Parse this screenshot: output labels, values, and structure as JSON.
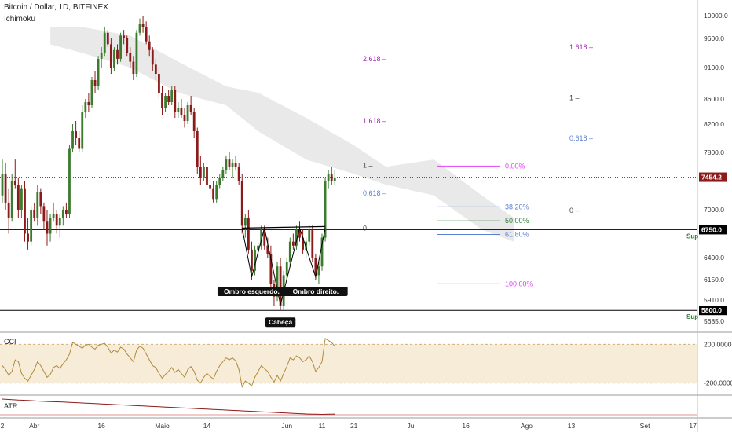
{
  "header": {
    "symbol_line": "Bitcoin / Dollar, 1D, BITFINEX",
    "indicator_line": "Ichimoku"
  },
  "colors": {
    "up": "#3c7a2e",
    "down": "#8b1a1a",
    "cloud": "#e2e2e2",
    "red_dotted": "#c62828",
    "cci_line": "#b08a3a",
    "cci_band": "#f6ecd8",
    "atr_line": "#8b1a1a",
    "fib_purple": "#9c27b0",
    "fib_blue": "#5b7fd1",
    "fib_green": "#2e7d32",
    "fib_magenta": "#e040fb",
    "support_green": "#2e7d32",
    "neckline": "#000000"
  },
  "chart_data": {
    "type": "candlestick",
    "title": "Bitcoin / Dollar, 1D, BITFINEX",
    "ylim": [
      5550,
      10100
    ],
    "y_ticks": [
      "10000.0",
      "9600.0",
      "9100.0",
      "8600.0",
      "8200.0",
      "7800.0",
      "7000.0",
      "6400.0",
      "6150.0",
      "5910.0",
      "5685.0"
    ],
    "y_tick_values": [
      10000,
      9600,
      9100,
      8600,
      8200,
      7800,
      7000,
      6400,
      6150,
      5910,
      5685
    ],
    "x_ticks": [
      "2",
      "Abr",
      "16",
      "Maio",
      "14",
      "Jun",
      "11",
      "21",
      "Jul",
      "16",
      "Ago",
      "13",
      "Set",
      "17"
    ],
    "x_tick_days": [
      0,
      10,
      31,
      50,
      64,
      89,
      100,
      110,
      128,
      145,
      164,
      178,
      201,
      216
    ],
    "current_price": {
      "value": 7454.2,
      "label": "7454.2"
    },
    "support_levels": [
      {
        "value": 6750,
        "label": "6750.0",
        "tag": "Sup"
      },
      {
        "value": 5800,
        "label": "5800.0",
        "tag": "Sup"
      }
    ],
    "candles": [
      [
        0,
        7200,
        7700,
        7100,
        7500
      ],
      [
        1,
        7500,
        7650,
        7000,
        7100
      ],
      [
        2,
        7100,
        7300,
        6700,
        6900
      ],
      [
        3,
        6900,
        7500,
        6850,
        7400
      ],
      [
        4,
        7400,
        7700,
        7300,
        7350
      ],
      [
        5,
        7350,
        7450,
        6900,
        7000
      ],
      [
        6,
        7000,
        7350,
        6900,
        7300
      ],
      [
        7,
        7300,
        7400,
        6600,
        6700
      ],
      [
        8,
        6700,
        6900,
        6500,
        6600
      ],
      [
        9,
        6600,
        7050,
        6550,
        7000
      ],
      [
        10,
        7000,
        7100,
        6850,
        6900
      ],
      [
        11,
        6900,
        7350,
        6800,
        7250
      ],
      [
        12,
        7250,
        7300,
        6950,
        7050
      ],
      [
        13,
        7050,
        7100,
        6750,
        6850
      ],
      [
        14,
        6850,
        7000,
        6550,
        6700
      ],
      [
        15,
        6700,
        6950,
        6600,
        6900
      ],
      [
        16,
        6900,
        7100,
        6850,
        6950
      ],
      [
        17,
        6950,
        7000,
        6700,
        6800
      ],
      [
        18,
        6800,
        6950,
        6650,
        6900
      ],
      [
        19,
        6900,
        7050,
        6800,
        7000
      ],
      [
        20,
        7000,
        7100,
        6900,
        6950
      ],
      [
        21,
        6950,
        7900,
        6900,
        7850
      ],
      [
        22,
        7850,
        8200,
        7800,
        8100
      ],
      [
        23,
        8100,
        8250,
        7900,
        8000
      ],
      [
        24,
        8000,
        8100,
        7800,
        7850
      ],
      [
        25,
        7850,
        8500,
        7800,
        8400
      ],
      [
        26,
        8400,
        8600,
        8300,
        8550
      ],
      [
        27,
        8550,
        8700,
        8400,
        8500
      ],
      [
        28,
        8500,
        8950,
        8450,
        8900
      ],
      [
        29,
        8900,
        9050,
        8700,
        8800
      ],
      [
        30,
        8800,
        9300,
        8750,
        9250
      ],
      [
        31,
        9250,
        9450,
        9100,
        9350
      ],
      [
        32,
        9350,
        9800,
        9300,
        9700
      ],
      [
        33,
        9700,
        9750,
        9450,
        9500
      ],
      [
        34,
        9500,
        9600,
        9000,
        9100
      ],
      [
        35,
        9100,
        9450,
        9050,
        9400
      ],
      [
        36,
        9400,
        9500,
        9150,
        9250
      ],
      [
        37,
        9250,
        9700,
        9200,
        9650
      ],
      [
        38,
        9650,
        9750,
        9500,
        9600
      ],
      [
        39,
        9600,
        9650,
        9300,
        9350
      ],
      [
        40,
        9350,
        9450,
        9100,
        9200
      ],
      [
        41,
        9200,
        9300,
        8900,
        9000
      ],
      [
        42,
        9000,
        9750,
        8950,
        9700
      ],
      [
        43,
        9700,
        9950,
        9650,
        9850
      ],
      [
        44,
        9850,
        10000,
        9700,
        9800
      ],
      [
        45,
        9800,
        9900,
        9500,
        9550
      ],
      [
        46,
        9550,
        9650,
        9300,
        9400
      ],
      [
        47,
        9400,
        9450,
        9050,
        9150
      ],
      [
        48,
        9150,
        9250,
        8900,
        9000
      ],
      [
        49,
        9000,
        9100,
        8600,
        8700
      ],
      [
        50,
        8700,
        8800,
        8350,
        8450
      ],
      [
        51,
        8450,
        8700,
        8400,
        8650
      ],
      [
        52,
        8650,
        8750,
        8500,
        8550
      ],
      [
        53,
        8550,
        8800,
        8500,
        8750
      ],
      [
        54,
        8750,
        8800,
        8300,
        8400
      ],
      [
        55,
        8400,
        8550,
        8300,
        8450
      ],
      [
        56,
        8450,
        8600,
        8300,
        8350
      ],
      [
        57,
        8350,
        8450,
        8150,
        8250
      ],
      [
        58,
        8250,
        8550,
        8200,
        8500
      ],
      [
        59,
        8500,
        8650,
        8350,
        8400
      ],
      [
        60,
        8400,
        8450,
        8000,
        8100
      ],
      [
        61,
        8100,
        8150,
        7500,
        7600
      ],
      [
        62,
        7600,
        7750,
        7350,
        7450
      ],
      [
        63,
        7450,
        7650,
        7400,
        7600
      ],
      [
        64,
        7600,
        7700,
        7300,
        7350
      ],
      [
        65,
        7350,
        7450,
        7200,
        7300
      ],
      [
        66,
        7300,
        7400,
        7100,
        7150
      ],
      [
        67,
        7150,
        7400,
        7100,
        7350
      ],
      [
        68,
        7350,
        7500,
        7300,
        7450
      ],
      [
        69,
        7450,
        7600,
        7400,
        7550
      ],
      [
        70,
        7550,
        7750,
        7500,
        7700
      ],
      [
        71,
        7700,
        7800,
        7550,
        7600
      ],
      [
        72,
        7600,
        7700,
        7450,
        7650
      ],
      [
        73,
        7650,
        7750,
        7550,
        7600
      ],
      [
        74,
        7600,
        7650,
        7350,
        7400
      ],
      [
        75,
        7400,
        7500,
        6700,
        6800
      ],
      [
        76,
        6800,
        6950,
        6650,
        6900
      ],
      [
        77,
        6900,
        7000,
        6450,
        6500
      ],
      [
        78,
        6500,
        6600,
        6150,
        6250
      ],
      [
        79,
        6250,
        6550,
        6200,
        6500
      ],
      [
        80,
        6500,
        6600,
        6400,
        6550
      ],
      [
        81,
        6550,
        6800,
        6500,
        6750
      ],
      [
        82,
        6750,
        6800,
        6500,
        6550
      ],
      [
        83,
        6550,
        6650,
        6400,
        6450
      ],
      [
        84,
        6450,
        6550,
        6050,
        6100
      ],
      [
        85,
        6100,
        6150,
        5850,
        5950
      ],
      [
        86,
        5950,
        6350,
        5900,
        6300
      ],
      [
        87,
        6300,
        6400,
        5800,
        5850
      ],
      [
        88,
        5850,
        6250,
        5800,
        6200
      ],
      [
        89,
        6200,
        6400,
        6150,
        6350
      ],
      [
        90,
        6350,
        6650,
        6300,
        6600
      ],
      [
        91,
        6600,
        6700,
        6500,
        6550
      ],
      [
        92,
        6550,
        6800,
        6500,
        6750
      ],
      [
        93,
        6750,
        6850,
        6600,
        6650
      ],
      [
        94,
        6650,
        6750,
        6450,
        6500
      ],
      [
        95,
        6500,
        6650,
        6400,
        6600
      ],
      [
        96,
        6600,
        6800,
        6550,
        6750
      ],
      [
        97,
        6750,
        6800,
        6350,
        6400
      ],
      [
        98,
        6400,
        6450,
        6150,
        6200
      ],
      [
        99,
        6200,
        6350,
        6100,
        6300
      ],
      [
        100,
        6300,
        6700,
        6250,
        6650
      ],
      [
        101,
        6650,
        7450,
        6600,
        7400
      ],
      [
        102,
        7400,
        7550,
        7300,
        7500
      ],
      [
        103,
        7500,
        7600,
        7350,
        7400
      ],
      [
        104,
        7400,
        7550,
        7350,
        7450
      ]
    ],
    "annotations": [
      {
        "text": "Ombro esquerdo.",
        "x": 78,
        "y": 6150
      },
      {
        "text": "Cabeça",
        "x": 87,
        "y": 5800
      },
      {
        "text": "Ombro direito.",
        "x": 98,
        "y": 6150
      }
    ],
    "fib_retracement": [
      {
        "label": "0.00%",
        "value": 7610
      },
      {
        "label": "38.20%",
        "value": 7040
      },
      {
        "label": "50.00%",
        "value": 6860
      },
      {
        "label": "61.80%",
        "value": 6690
      },
      {
        "label": "100.00%",
        "value": 6100
      }
    ],
    "fib_extension_left": [
      {
        "label": "2.618",
        "value": 9250
      },
      {
        "label": "1.618",
        "value": 8250
      },
      {
        "label": "1",
        "value": 7620
      },
      {
        "label": "0.618",
        "value": 7230
      },
      {
        "label": "0",
        "value": 6770
      }
    ],
    "fib_extension_right": [
      {
        "label": "1.618",
        "value": 9450
      },
      {
        "label": "1",
        "value": 8620
      },
      {
        "label": "0.618",
        "value": 8000
      },
      {
        "label": "0",
        "value": 6990
      }
    ],
    "cci": {
      "label": "CCI",
      "y_ticks": [
        "200.0000",
        "-200.0000"
      ],
      "y_tick_values": [
        200,
        -200
      ],
      "values": [
        -20,
        -60,
        -120,
        -80,
        40,
        20,
        -100,
        -150,
        -180,
        -120,
        -60,
        20,
        -20,
        -80,
        -140,
        -110,
        -40,
        -20,
        -50,
        0,
        40,
        100,
        220,
        200,
        180,
        160,
        190,
        200,
        170,
        150,
        190,
        200,
        210,
        170,
        110,
        140,
        120,
        170,
        150,
        100,
        60,
        20,
        140,
        180,
        160,
        100,
        40,
        -20,
        -40,
        -100,
        -150,
        -110,
        -80,
        -40,
        -90,
        -60,
        -100,
        -140,
        -60,
        -30,
        -80,
        -170,
        -200,
        -140,
        -100,
        -130,
        -160,
        -80,
        -20,
        20,
        60,
        40,
        60,
        30,
        -60,
        -240,
        -180,
        -200,
        -230,
        -140,
        -80,
        -20,
        -50,
        -80,
        -140,
        -190,
        -120,
        -180,
        -100,
        -30,
        60,
        40,
        80,
        60,
        20,
        40,
        80,
        20,
        -80,
        -40,
        20,
        260,
        240,
        220,
        180
      ]
    },
    "atr": {
      "label": "ATR",
      "values": [
        580,
        575,
        570,
        565,
        560,
        555,
        552,
        548,
        545,
        540,
        535,
        530,
        526,
        522,
        518,
        515,
        512,
        510,
        508,
        505,
        500,
        496,
        492,
        488,
        484,
        480,
        476,
        472,
        468,
        464,
        460,
        456,
        452,
        448,
        444,
        440,
        436,
        432,
        428,
        424,
        420,
        416,
        412,
        408,
        404,
        400,
        396,
        392,
        388,
        384,
        380,
        376,
        372,
        368,
        364,
        360,
        356,
        352,
        348,
        344,
        340,
        336,
        332,
        328,
        324,
        320,
        316,
        312,
        308,
        304,
        300,
        296,
        292,
        288,
        284,
        280,
        276,
        272,
        268,
        264,
        260,
        256,
        252,
        248,
        244,
        240,
        236,
        232,
        228,
        224,
        220,
        216,
        212,
        208,
        204,
        200,
        198,
        196,
        194,
        192,
        190,
        192,
        194,
        196,
        198
      ]
    }
  }
}
